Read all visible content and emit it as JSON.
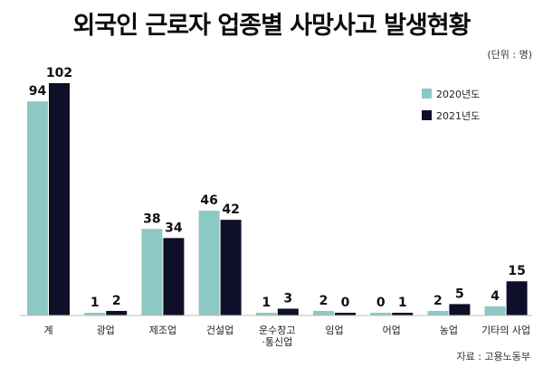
{
  "chart_data": {
    "type": "bar",
    "title": "외국인 근로자 업종별 사망사고 발생현황",
    "unit": "(단위 : 명)",
    "source": "자료 : 고용노동부",
    "categories": [
      "계",
      "광업",
      "제조업",
      "건설업",
      "운수창고\n·통신업",
      "임업",
      "어업",
      "농업",
      "기타의 사업"
    ],
    "series": [
      {
        "name": "2020년도",
        "color": "#8cc8c4",
        "values": [
          94,
          1,
          38,
          46,
          1,
          2,
          0,
          2,
          4
        ]
      },
      {
        "name": "2021년도",
        "color": "#0f0f2a",
        "values": [
          102,
          2,
          34,
          42,
          3,
          0,
          1,
          5,
          15
        ]
      }
    ],
    "ylim": [
      0,
      102
    ],
    "grid": false,
    "legend_position": "top-right"
  }
}
